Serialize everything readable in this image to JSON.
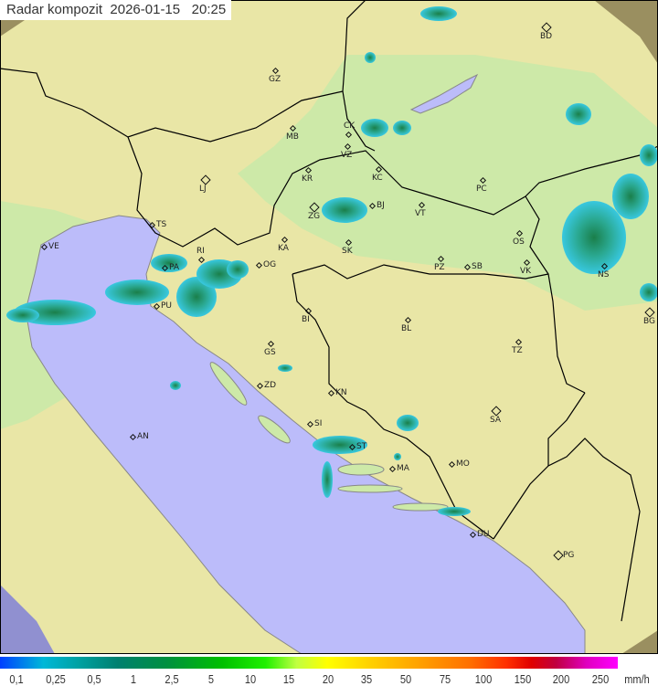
{
  "header": {
    "title": "Radar kompozit",
    "date": "2026-01-15",
    "time": "20:25"
  },
  "cities": [
    {
      "code": "GZ"
    },
    {
      "code": "BD"
    },
    {
      "code": "MB"
    },
    {
      "code": "CK"
    },
    {
      "code": "VZ"
    },
    {
      "code": "KR"
    },
    {
      "code": "KC"
    },
    {
      "code": "PC"
    },
    {
      "code": "LJ"
    },
    {
      "code": "TS"
    },
    {
      "code": "ZG"
    },
    {
      "code": "BJ"
    },
    {
      "code": "VT"
    },
    {
      "code": "VE"
    },
    {
      "code": "RI"
    },
    {
      "code": "KA"
    },
    {
      "code": "SK"
    },
    {
      "code": "OS"
    },
    {
      "code": "PA"
    },
    {
      "code": "OG"
    },
    {
      "code": "PZ"
    },
    {
      "code": "SB"
    },
    {
      "code": "VK"
    },
    {
      "code": "NS"
    },
    {
      "code": "PU"
    },
    {
      "code": "BG"
    },
    {
      "code": "BI"
    },
    {
      "code": "BL"
    },
    {
      "code": "TZ"
    },
    {
      "code": "GS"
    },
    {
      "code": "ZD"
    },
    {
      "code": "KN"
    },
    {
      "code": "SA"
    },
    {
      "code": "SI"
    },
    {
      "code": "AN"
    },
    {
      "code": "ST"
    },
    {
      "code": "MO"
    },
    {
      "code": "MA"
    },
    {
      "code": "DU"
    },
    {
      "code": "PG"
    }
  ],
  "legend": {
    "labels": [
      "0,1",
      "0,25",
      "0,5",
      "1",
      "2,5",
      "5",
      "10",
      "15",
      "20",
      "35",
      "50",
      "75",
      "100",
      "150",
      "200",
      "250"
    ],
    "unit": "mm/h"
  },
  "colors": {
    "sea": "#bcbcfa",
    "land": "#e9e6a6",
    "lowland": "#cde9a8",
    "out_of_range": "#9a8f60",
    "radar_light": "#2ab8c8",
    "radar_dark": "#1a8a50"
  }
}
